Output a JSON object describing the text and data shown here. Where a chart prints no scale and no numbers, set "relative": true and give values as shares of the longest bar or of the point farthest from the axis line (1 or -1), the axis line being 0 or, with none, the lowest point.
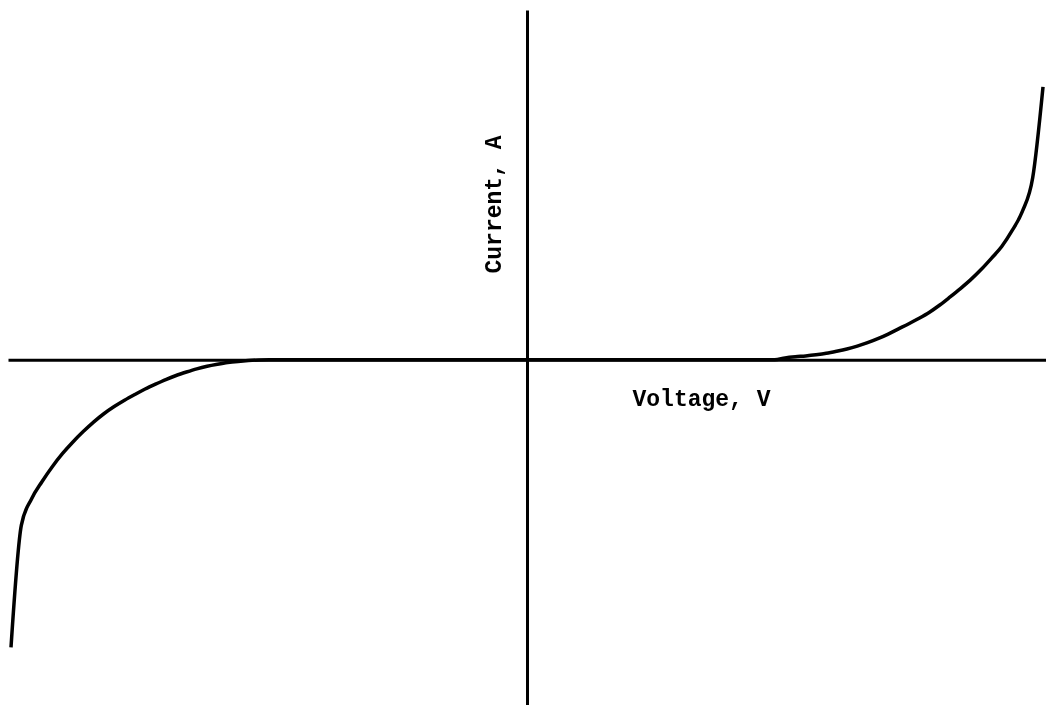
{
  "chart_data": {
    "type": "line",
    "xlabel": "Voltage, V",
    "ylabel": "Current, A",
    "categories": [
      null,
      null,
      null,
      null,
      null,
      null,
      null,
      null,
      null,
      null,
      null,
      null,
      null,
      null,
      null,
      null,
      null,
      null,
      null,
      null,
      null,
      null,
      null,
      null,
      null,
      null,
      null,
      null,
      null,
      null,
      null,
      null,
      null,
      null,
      null,
      null,
      null,
      null,
      null,
      null,
      null,
      null,
      null,
      null,
      null,
      null,
      null,
      null,
      null,
      null,
      null,
      null,
      null,
      null,
      null,
      null,
      null,
      null,
      null,
      null,
      null,
      null,
      null,
      null,
      null,
      null,
      null,
      null,
      null,
      null,
      null,
      null,
      null,
      null,
      null,
      null,
      null,
      null,
      null,
      null,
      null,
      null,
      null,
      null,
      null,
      null,
      null,
      null,
      null,
      null,
      null,
      null,
      null,
      null,
      null,
      null,
      null,
      null,
      null,
      null,
      null
    ],
    "values": [
      -1,
      -0.576,
      -0.483,
      -0.424,
      -0.372,
      -0.326,
      -0.286,
      -0.25,
      -0.217,
      -0.188,
      -0.163,
      -0.141,
      -0.121,
      -0.102,
      -0.085,
      -0.069,
      -0.055,
      -0.043,
      -0.032,
      -0.023,
      -0.016,
      -0.01,
      -0.006,
      -0.003,
      -0.001,
      0,
      0,
      0,
      0,
      0,
      0,
      0,
      0,
      0,
      0,
      0,
      0,
      0,
      0,
      0,
      0,
      0,
      0,
      0,
      0,
      0,
      0,
      0,
      0,
      0,
      0,
      0,
      0,
      0,
      0,
      0,
      0,
      0,
      0,
      0,
      0,
      0,
      0,
      0,
      0,
      0,
      0,
      0,
      0,
      0,
      0,
      0,
      0,
      0,
      0,
      0.006,
      0.01,
      0.013,
      0.017,
      0.022,
      0.029,
      0.037,
      0.047,
      0.059,
      0.073,
      0.089,
      0.107,
      0.125,
      0.144,
      0.165,
      0.19,
      0.218,
      0.247,
      0.278,
      0.313,
      0.352,
      0.393,
      0.448,
      0.515,
      0.632,
      0.948
    ],
    "color": "#000000",
    "relative": true
  }
}
